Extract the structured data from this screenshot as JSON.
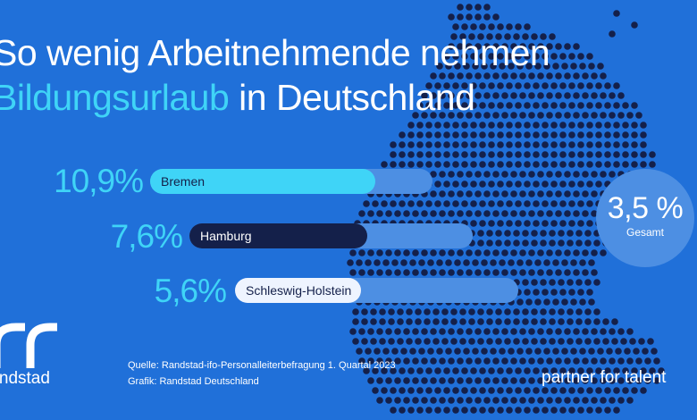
{
  "title": {
    "line1": "So wenig Arbeitnehmende nehmen",
    "highlight": "Bildungsurlaub",
    "line2_rest": " in Deutschland"
  },
  "chart_data": {
    "type": "bar",
    "orientation": "horizontal",
    "categories": [
      "Bremen",
      "Hamburg",
      "Schleswig-Holstein"
    ],
    "values": [
      10.9,
      7.6,
      5.6
    ],
    "value_labels": [
      "10,9%",
      "7,6%",
      "5,6%"
    ],
    "unit": "%",
    "total": {
      "value_label": "3,5 %",
      "label": "Gesamt",
      "value": 3.5
    }
  },
  "footer": {
    "source": "Quelle: Randstad-ifo-Personalleiterbefragung 1. Quartal 2023",
    "graphic": "Grafik: Randstad Deutschland",
    "brand": "randstad",
    "tagline": "partner for talent"
  },
  "colors": {
    "background": "#2070d9",
    "accent_cyan": "#3fd4f7",
    "navy": "#14204a",
    "light_track": "#4d8fe3",
    "map_dot": "#14204a"
  },
  "icons": {
    "map": "germany-dot-map",
    "logo": "randstad-logo"
  }
}
